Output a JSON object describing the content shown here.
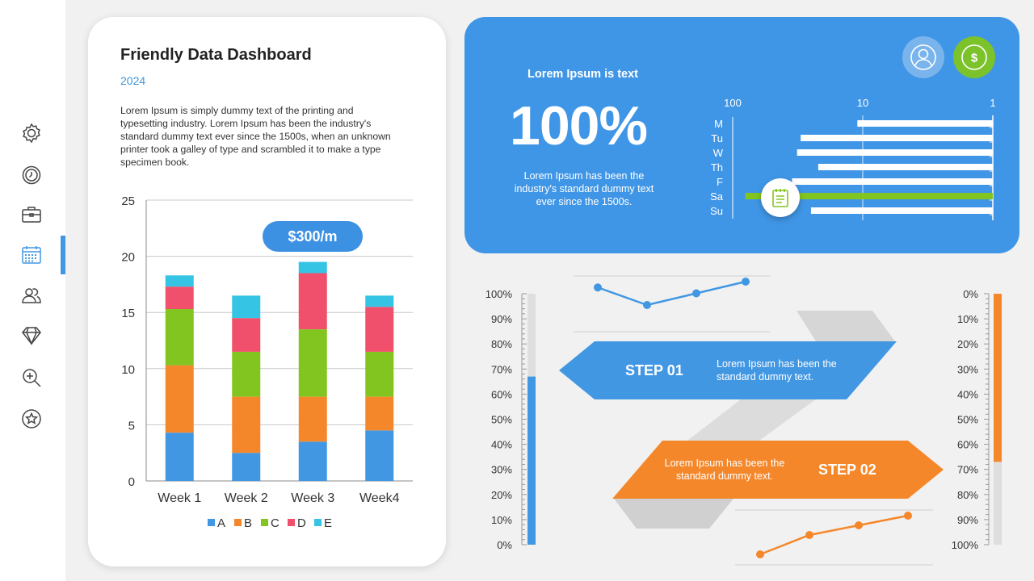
{
  "sidebar": {
    "items": [
      {
        "name": "sidebar-item-settings",
        "icon": "gear-icon"
      },
      {
        "name": "sidebar-item-clock",
        "icon": "clock-icon"
      },
      {
        "name": "sidebar-item-briefcase",
        "icon": "briefcase-icon"
      },
      {
        "name": "sidebar-item-calendar",
        "icon": "calendar-icon",
        "active": true
      },
      {
        "name": "sidebar-item-users",
        "icon": "users-icon"
      },
      {
        "name": "sidebar-item-diamond",
        "icon": "diamond-icon"
      },
      {
        "name": "sidebar-item-zoom",
        "icon": "zoom-in-icon"
      },
      {
        "name": "sidebar-item-star",
        "icon": "star-icon"
      }
    ],
    "accent": "#4297e3"
  },
  "dashboard": {
    "title": "Friendly Data Dashboard",
    "year": "2024",
    "description": "Lorem Ipsum is simply dummy text of the printing and typesetting industry. Lorem Ipsum has been the industry's standard dummy text ever since the 1500s, when an unknown printer took a galley of type and scrambled it to make a type specimen book.",
    "price_badge": "$300/m"
  },
  "blue_panel": {
    "heading": "Lorem Ipsum is text",
    "big_value": "100%",
    "description": "Lorem Ipsum has been the industry's standard dummy text ever since the 1500s.",
    "user_icon": "user-icon",
    "dollar_icon": "dollar-icon",
    "note_icon": "notepad-icon"
  },
  "steps": {
    "step1": {
      "label": "STEP 01",
      "text": "Lorem Ipsum has been the standard dummy text."
    },
    "step2": {
      "label": "STEP 02",
      "text": "Lorem Ipsum has been the standard dummy text."
    }
  },
  "chart_data": [
    {
      "type": "bar",
      "stacked": true,
      "categories": [
        "Week 1",
        "Week 2",
        "Week 3",
        "Week4"
      ],
      "series": [
        {
          "name": "A",
          "color": "#4297e3",
          "values": [
            4.3,
            2.5,
            3.5,
            4.5
          ]
        },
        {
          "name": "B",
          "color": "#f5872b",
          "values": [
            6.0,
            5.0,
            4.0,
            3.0
          ]
        },
        {
          "name": "C",
          "color": "#83c520",
          "values": [
            5.0,
            4.0,
            6.0,
            4.0
          ]
        },
        {
          "name": "D",
          "color": "#f0506c",
          "values": [
            2.0,
            3.0,
            5.0,
            4.0
          ]
        },
        {
          "name": "E",
          "color": "#36c4e4",
          "values": [
            1.0,
            2.0,
            1.0,
            1.0
          ]
        }
      ],
      "ylim": [
        0,
        25
      ],
      "yticks": [
        0,
        5,
        10,
        15,
        20,
        25
      ],
      "grid": true,
      "legend": "bottom"
    },
    {
      "type": "bar",
      "orientation": "horizontal",
      "scale": "log",
      "categories": [
        "M",
        "Tu",
        "W",
        "Th",
        "F",
        "Sa",
        "Su"
      ],
      "values": [
        11,
        30,
        32,
        22,
        35,
        80,
        25
      ],
      "highlight": "Sa",
      "highlight_color": "#83c520",
      "xticks": [
        "100",
        "10",
        "1"
      ],
      "xlim": [
        100,
        1
      ]
    },
    {
      "type": "bar",
      "orientation": "vertical-gauge",
      "value_percent": 67,
      "color": "#4297e3",
      "ticks": [
        "100%",
        "90%",
        "80%",
        "70%",
        "60%",
        "50%",
        "40%",
        "30%",
        "20%",
        "10%",
        "0%"
      ]
    },
    {
      "type": "bar",
      "orientation": "vertical-gauge-inverted",
      "value_percent": 67,
      "color": "#f5872b",
      "ticks": [
        "0%",
        "10%",
        "20%",
        "30%",
        "40%",
        "50%",
        "60%",
        "70%",
        "80%",
        "90%",
        "100%"
      ]
    },
    {
      "type": "line",
      "color": "#4297e3",
      "values": [
        4,
        1,
        3,
        5
      ]
    },
    {
      "type": "line",
      "color": "#f5872b",
      "values": [
        1,
        3,
        4,
        5
      ]
    }
  ]
}
